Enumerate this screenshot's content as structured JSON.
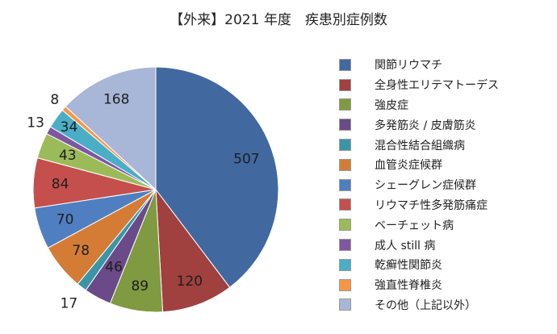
{
  "chart_data": {
    "type": "pie",
    "title": "【外来】2021 年度　疾患別症例数",
    "categories": [
      "関節リウマチ",
      "全身性エリテマトーデス",
      "強皮症",
      "多発筋炎 / 皮膚筋炎",
      "混合性結合組織病",
      "血管炎症候群",
      "シェーグレン症候群",
      "リウマチ性多発筋痛症",
      "ベーチェット病",
      "成人 still 病",
      "乾癬性関節炎",
      "強直性脊椎炎",
      "その他（上記以外）"
    ],
    "values": [
      507,
      120,
      89,
      46,
      17,
      78,
      70,
      84,
      43,
      13,
      34,
      8,
      168
    ],
    "colors": [
      "#4169a0",
      "#a0403f",
      "#7f9a41",
      "#6a4a88",
      "#3a96a6",
      "#d47c36",
      "#4f7fc0",
      "#c44f4d",
      "#9bbb59",
      "#7d57a0",
      "#4aaec6",
      "#f79646",
      "#a8b6d8"
    ],
    "start_angle": "12 o'clock",
    "direction": "clockwise",
    "legend_position": "right"
  }
}
